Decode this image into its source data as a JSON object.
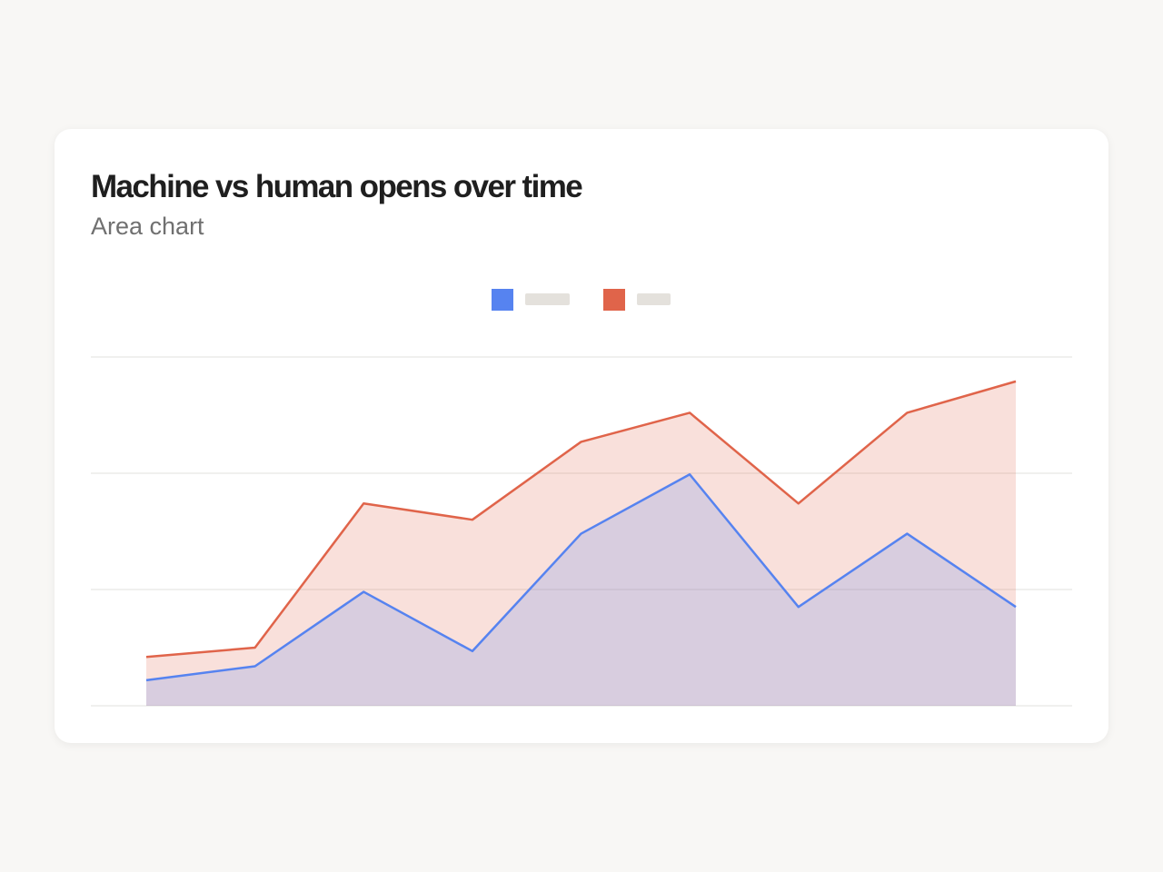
{
  "title": "Machine vs human opens over time",
  "subtitle": "Area chart",
  "chart_data": {
    "type": "area",
    "title": "Machine vs human opens over time",
    "subtitle": "Area chart",
    "x": [
      1,
      2,
      3,
      4,
      5,
      6,
      7,
      8,
      9
    ],
    "ylim": [
      0,
      300
    ],
    "grid": true,
    "gridlines": [
      0,
      100,
      200,
      300
    ],
    "legend": "top-center",
    "series": [
      {
        "color": "#5683f0",
        "values": [
          22,
          34,
          98,
          47,
          148,
          199,
          85,
          148,
          85
        ]
      },
      {
        "color": "#e0644a",
        "values": [
          42,
          50,
          174,
          160,
          227,
          252,
          174,
          252,
          279
        ]
      }
    ]
  }
}
